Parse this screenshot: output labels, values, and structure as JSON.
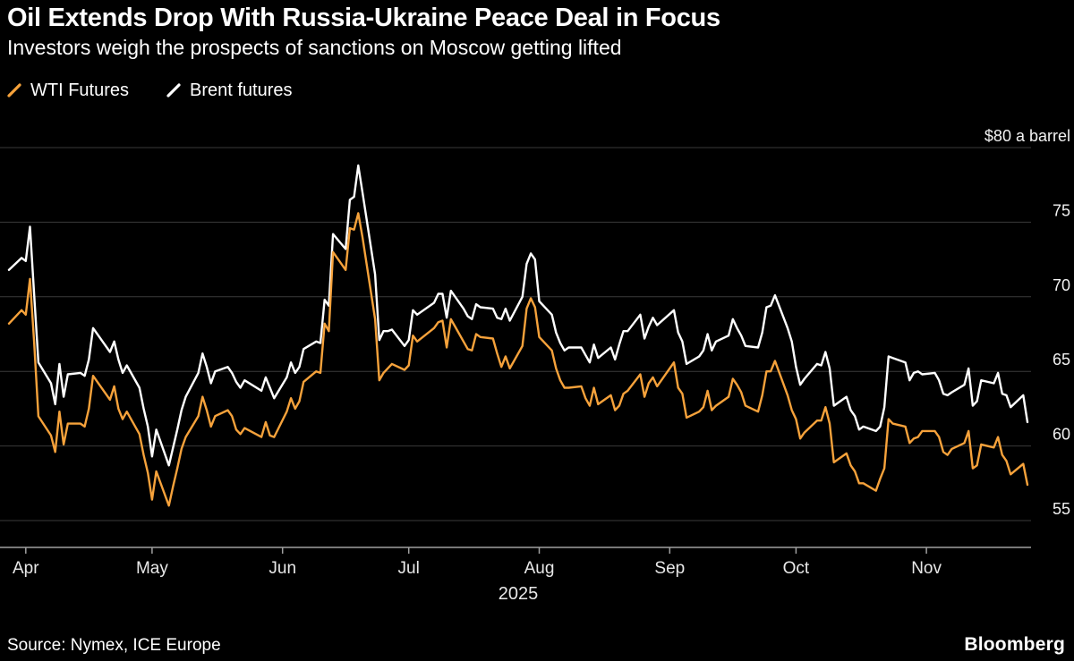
{
  "header": {
    "title": "Oil Extends Drop With Russia-Ukraine Peace Deal in Focus",
    "subtitle": "Investors weigh the prospects of sanctions on Moscow getting lifted"
  },
  "legend": [
    {
      "label": "WTI Futures",
      "color": "#f6a23b"
    },
    {
      "label": "Brent futures",
      "color": "#ffffff"
    }
  ],
  "footer": {
    "source": "Source: Nymex, ICE Europe",
    "brand": "Bloomberg"
  },
  "chart_data": {
    "type": "line",
    "title": "Oil Extends Drop With Russia-Ukraine Peace Deal in Focus",
    "subtitle": "Investors weigh the prospects of sanctions on Moscow getting lifted",
    "ylabel": "$ a barrel",
    "ylim": [
      53.2,
      80.9
    ],
    "grid": true,
    "legend_position": "top-left",
    "grid_color": "#3a3a3a",
    "axis_color": "#a0a0a0",
    "axis_text_color": "#f2f2f2",
    "yticks": [
      {
        "value": 55,
        "label": "55"
      },
      {
        "value": 60,
        "label": "60"
      },
      {
        "value": 65,
        "label": "65"
      },
      {
        "value": 70,
        "label": "70"
      },
      {
        "value": 75,
        "label": "75"
      },
      {
        "value": 80,
        "label": "$80 a barrel"
      }
    ],
    "x_year": "2025",
    "x_ticks": [
      {
        "date": "04-01",
        "label": "Apr"
      },
      {
        "date": "05-01",
        "label": "May"
      },
      {
        "date": "06-01",
        "label": "Jun"
      },
      {
        "date": "07-01",
        "label": "Jul"
      },
      {
        "date": "08-01",
        "label": "Aug"
      },
      {
        "date": "09-01",
        "label": "Sep"
      },
      {
        "date": "10-01",
        "label": "Oct"
      },
      {
        "date": "11-01",
        "label": "Nov"
      }
    ],
    "x": [
      "03-28",
      "03-31",
      "04-01",
      "04-02",
      "04-03",
      "04-04",
      "04-07",
      "04-08",
      "04-09",
      "04-10",
      "04-11",
      "04-14",
      "04-15",
      "04-16",
      "04-17",
      "04-21",
      "04-22",
      "04-23",
      "04-24",
      "04-25",
      "04-28",
      "04-29",
      "04-30",
      "05-01",
      "05-02",
      "05-05",
      "05-06",
      "05-07",
      "05-08",
      "05-09",
      "05-12",
      "05-13",
      "05-14",
      "05-15",
      "05-16",
      "05-19",
      "05-20",
      "05-21",
      "05-22",
      "05-23",
      "05-27",
      "05-28",
      "05-29",
      "05-30",
      "06-02",
      "06-03",
      "06-04",
      "06-05",
      "06-06",
      "06-09",
      "06-10",
      "06-11",
      "06-12",
      "06-13",
      "06-16",
      "06-17",
      "06-18",
      "06-19",
      "06-20",
      "06-23",
      "06-24",
      "06-25",
      "06-26",
      "06-27",
      "06-30",
      "07-01",
      "07-02",
      "07-03",
      "07-07",
      "07-08",
      "07-09",
      "07-10",
      "07-11",
      "07-14",
      "07-15",
      "07-16",
      "07-17",
      "07-18",
      "07-21",
      "07-22",
      "07-23",
      "07-24",
      "07-25",
      "07-28",
      "07-29",
      "07-30",
      "07-31",
      "08-01",
      "08-04",
      "08-05",
      "08-06",
      "08-07",
      "08-08",
      "08-11",
      "08-12",
      "08-13",
      "08-14",
      "08-15",
      "08-18",
      "08-19",
      "08-20",
      "08-21",
      "08-22",
      "08-25",
      "08-26",
      "08-27",
      "08-28",
      "08-29",
      "09-02",
      "09-03",
      "09-04",
      "09-05",
      "09-08",
      "09-09",
      "09-10",
      "09-11",
      "09-12",
      "09-15",
      "09-16",
      "09-17",
      "09-18",
      "09-19",
      "09-22",
      "09-23",
      "09-24",
      "09-25",
      "09-26",
      "09-29",
      "09-30",
      "10-01",
      "10-02",
      "10-03",
      "10-06",
      "10-07",
      "10-08",
      "10-09",
      "10-10",
      "10-13",
      "10-14",
      "10-15",
      "10-16",
      "10-17",
      "10-20",
      "10-21",
      "10-22",
      "10-23",
      "10-24",
      "10-27",
      "10-28",
      "10-29",
      "10-30",
      "10-31",
      "11-03",
      "11-04",
      "11-05",
      "11-06",
      "11-07",
      "11-10",
      "11-11",
      "11-12",
      "11-13",
      "11-14",
      "11-17",
      "11-18",
      "11-19",
      "11-20",
      "11-21",
      "11-24",
      "11-25"
    ],
    "series": [
      {
        "name": "WTI Futures",
        "color": "#f6a23b",
        "values": [
          68.2,
          69.1,
          68.8,
          71.2,
          66.9,
          61.99,
          60.7,
          59.6,
          62.3,
          60.1,
          61.5,
          61.5,
          61.3,
          62.5,
          64.7,
          63.1,
          64.0,
          62.5,
          61.8,
          62.3,
          60.8,
          59.4,
          58.2,
          56.4,
          58.3,
          56.0,
          57.3,
          58.5,
          59.8,
          60.6,
          62.0,
          63.3,
          62.4,
          61.3,
          62.0,
          62.4,
          62.0,
          61.1,
          60.8,
          61.2,
          60.6,
          61.6,
          60.7,
          60.6,
          62.3,
          63.2,
          62.5,
          63.0,
          64.3,
          65.0,
          64.9,
          68.2,
          67.7,
          73.0,
          71.8,
          74.6,
          74.5,
          75.6,
          74.0,
          68.5,
          64.4,
          64.9,
          65.2,
          65.5,
          65.1,
          65.4,
          67.4,
          67.0,
          67.9,
          68.3,
          68.4,
          66.6,
          68.5,
          67.0,
          66.5,
          66.4,
          67.5,
          67.3,
          67.2,
          66.2,
          65.3,
          66.0,
          65.2,
          66.7,
          69.2,
          69.9,
          69.3,
          67.3,
          66.4,
          65.2,
          64.4,
          63.9,
          63.9,
          64.0,
          63.2,
          62.7,
          63.9,
          62.8,
          63.4,
          62.4,
          62.7,
          63.5,
          63.7,
          64.8,
          63.3,
          64.2,
          64.6,
          64.0,
          65.6,
          63.9,
          63.5,
          61.9,
          62.3,
          62.6,
          63.7,
          62.4,
          62.7,
          63.3,
          64.5,
          64.1,
          63.6,
          62.7,
          62.3,
          63.4,
          65.0,
          65.0,
          65.7,
          63.4,
          62.4,
          61.8,
          60.5,
          60.9,
          61.7,
          61.7,
          62.6,
          61.5,
          58.9,
          59.5,
          58.7,
          58.3,
          57.5,
          57.5,
          57.0,
          57.8,
          58.5,
          61.8,
          61.5,
          61.3,
          60.2,
          60.5,
          60.6,
          61.0,
          61.0,
          60.6,
          59.6,
          59.4,
          59.8,
          60.2,
          61.0,
          58.5,
          58.7,
          60.1,
          59.9,
          60.6,
          59.4,
          59.0,
          58.1,
          58.8,
          57.4
        ]
      },
      {
        "name": "Brent futures",
        "color": "#ffffff",
        "values": [
          71.8,
          72.6,
          72.4,
          74.7,
          70.1,
          65.6,
          64.2,
          62.8,
          65.5,
          63.3,
          64.8,
          64.9,
          64.7,
          65.8,
          67.9,
          66.3,
          67.0,
          65.8,
          64.9,
          65.4,
          63.9,
          62.5,
          61.3,
          59.3,
          61.1,
          58.7,
          59.9,
          61.1,
          62.4,
          63.3,
          64.9,
          66.2,
          65.3,
          64.2,
          65.0,
          65.3,
          64.9,
          64.3,
          63.9,
          64.4,
          63.7,
          64.6,
          63.9,
          63.2,
          64.6,
          65.6,
          64.9,
          65.3,
          66.5,
          67.0,
          66.9,
          69.8,
          69.4,
          74.2,
          73.2,
          76.5,
          76.7,
          78.8,
          77.0,
          71.5,
          67.1,
          67.7,
          67.7,
          67.8,
          66.7,
          67.1,
          69.1,
          68.8,
          69.6,
          70.2,
          70.2,
          68.6,
          70.4,
          69.2,
          68.7,
          68.5,
          69.5,
          69.3,
          69.2,
          68.6,
          68.5,
          69.2,
          68.4,
          70.0,
          72.2,
          72.9,
          72.5,
          69.7,
          68.8,
          67.6,
          66.9,
          66.4,
          66.6,
          66.6,
          66.1,
          65.6,
          66.8,
          65.9,
          66.6,
          65.8,
          66.8,
          67.7,
          67.7,
          68.8,
          67.2,
          68.0,
          68.6,
          68.1,
          69.1,
          67.6,
          67.0,
          65.5,
          66.0,
          66.4,
          67.5,
          66.4,
          67.0,
          67.4,
          68.5,
          67.9,
          67.4,
          66.7,
          66.6,
          67.6,
          69.3,
          69.4,
          70.1,
          67.9,
          67.0,
          65.3,
          64.1,
          64.5,
          65.5,
          65.4,
          66.3,
          65.2,
          62.7,
          63.3,
          62.4,
          62.0,
          61.1,
          61.3,
          61.0,
          61.3,
          62.6,
          66.0,
          65.9,
          65.6,
          64.4,
          64.9,
          65.0,
          64.8,
          64.9,
          64.4,
          63.5,
          63.4,
          63.6,
          64.1,
          65.2,
          62.7,
          63.0,
          64.4,
          64.2,
          64.9,
          63.5,
          63.4,
          62.6,
          63.4,
          61.6
        ]
      }
    ]
  }
}
